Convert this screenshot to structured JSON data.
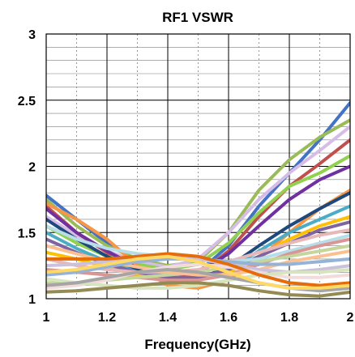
{
  "chart_data": {
    "type": "line",
    "title": "RF1 VSWR",
    "xlabel": "Frequency(GHz)",
    "ylabel": "",
    "xlim": [
      1,
      2
    ],
    "ylim": [
      1,
      3
    ],
    "x_ticks": [
      "1",
      "1.2",
      "1.4",
      "1.6",
      "1.8",
      "2"
    ],
    "y_ticks": [
      "1",
      "1.5",
      "2",
      "2.5",
      "3"
    ],
    "grid": true,
    "legend": "none",
    "x": [
      1.0,
      1.1,
      1.2,
      1.3,
      1.4,
      1.5,
      1.6,
      1.7,
      1.8,
      1.9,
      2.0
    ],
    "series": [
      {
        "color": "#4472c4",
        "values": [
          1.78,
          1.6,
          1.42,
          1.28,
          1.18,
          1.2,
          1.4,
          1.7,
          1.95,
          2.2,
          2.48
        ]
      },
      {
        "color": "#9bbb59",
        "values": [
          1.75,
          1.55,
          1.4,
          1.3,
          1.25,
          1.28,
          1.5,
          1.82,
          2.05,
          2.22,
          2.35
        ]
      },
      {
        "color": "#d5bde6",
        "values": [
          1.62,
          1.48,
          1.36,
          1.28,
          1.24,
          1.3,
          1.5,
          1.75,
          1.95,
          2.12,
          2.3
        ]
      },
      {
        "color": "#c0504d",
        "values": [
          1.7,
          1.5,
          1.35,
          1.22,
          1.15,
          1.18,
          1.36,
          1.62,
          1.85,
          2.02,
          2.2
        ]
      },
      {
        "color": "#92d050",
        "values": [
          1.55,
          1.42,
          1.32,
          1.26,
          1.22,
          1.26,
          1.42,
          1.65,
          1.85,
          1.95,
          2.08
        ]
      },
      {
        "color": "#7030a0",
        "values": [
          1.68,
          1.5,
          1.36,
          1.24,
          1.18,
          1.2,
          1.34,
          1.55,
          1.75,
          1.9,
          2.0
        ]
      },
      {
        "color": "#f79646",
        "values": [
          1.72,
          1.6,
          1.45,
          1.25,
          1.1,
          1.08,
          1.14,
          1.3,
          1.5,
          1.68,
          1.82
        ]
      },
      {
        "color": "#1f497d",
        "values": [
          1.6,
          1.45,
          1.32,
          1.22,
          1.16,
          1.15,
          1.24,
          1.4,
          1.55,
          1.68,
          1.8
        ]
      },
      {
        "color": "#4bacc6",
        "values": [
          1.5,
          1.38,
          1.28,
          1.2,
          1.14,
          1.14,
          1.22,
          1.36,
          1.5,
          1.6,
          1.7
        ]
      },
      {
        "color": "#ffc000",
        "values": [
          1.35,
          1.3,
          1.24,
          1.18,
          1.14,
          1.14,
          1.2,
          1.32,
          1.45,
          1.55,
          1.62
        ]
      },
      {
        "color": "#8064a2",
        "values": [
          1.45,
          1.35,
          1.26,
          1.2,
          1.16,
          1.16,
          1.22,
          1.32,
          1.42,
          1.52,
          1.58
        ]
      },
      {
        "color": "#e6b8b7",
        "values": [
          1.3,
          1.25,
          1.22,
          1.2,
          1.2,
          1.22,
          1.28,
          1.35,
          1.42,
          1.48,
          1.52
        ]
      },
      {
        "color": "#b7dde8",
        "values": [
          1.55,
          1.45,
          1.38,
          1.34,
          1.32,
          1.3,
          1.28,
          1.3,
          1.36,
          1.42,
          1.48
        ]
      },
      {
        "color": "#d99694",
        "values": [
          1.22,
          1.2,
          1.18,
          1.16,
          1.14,
          1.14,
          1.18,
          1.26,
          1.34,
          1.4,
          1.45
        ]
      },
      {
        "color": "#c3d69b",
        "values": [
          1.12,
          1.12,
          1.14,
          1.16,
          1.18,
          1.2,
          1.24,
          1.28,
          1.32,
          1.36,
          1.4
        ]
      },
      {
        "color": "#fac090",
        "values": [
          1.4,
          1.34,
          1.28,
          1.24,
          1.2,
          1.18,
          1.18,
          1.22,
          1.28,
          1.32,
          1.36
        ]
      },
      {
        "color": "#95b3d7",
        "values": [
          1.18,
          1.2,
          1.24,
          1.28,
          1.3,
          1.3,
          1.28,
          1.26,
          1.26,
          1.28,
          1.3
        ]
      },
      {
        "color": "#ccc1da",
        "values": [
          1.25,
          1.26,
          1.28,
          1.3,
          1.32,
          1.3,
          1.26,
          1.22,
          1.2,
          1.22,
          1.25
        ]
      },
      {
        "color": "#f2dcdb",
        "values": [
          1.08,
          1.1,
          1.14,
          1.2,
          1.24,
          1.26,
          1.24,
          1.2,
          1.16,
          1.16,
          1.18
        ]
      },
      {
        "color": "#d7e4bd",
        "values": [
          1.15,
          1.12,
          1.1,
          1.08,
          1.08,
          1.1,
          1.14,
          1.18,
          1.2,
          1.2,
          1.22
        ]
      },
      {
        "color": "#e46c0a",
        "values": [
          1.3,
          1.3,
          1.3,
          1.32,
          1.34,
          1.32,
          1.26,
          1.18,
          1.12,
          1.1,
          1.12
        ]
      },
      {
        "color": "#a5a5a5",
        "values": [
          1.1,
          1.12,
          1.16,
          1.2,
          1.22,
          1.2,
          1.16,
          1.12,
          1.08,
          1.06,
          1.08
        ]
      },
      {
        "color": "#948a54",
        "values": [
          1.05,
          1.06,
          1.08,
          1.1,
          1.12,
          1.12,
          1.1,
          1.06,
          1.03,
          1.02,
          1.05
        ]
      },
      {
        "color": "#ffd966",
        "values": [
          1.2,
          1.22,
          1.26,
          1.3,
          1.32,
          1.28,
          1.2,
          1.12,
          1.08,
          1.08,
          1.1
        ]
      }
    ]
  }
}
